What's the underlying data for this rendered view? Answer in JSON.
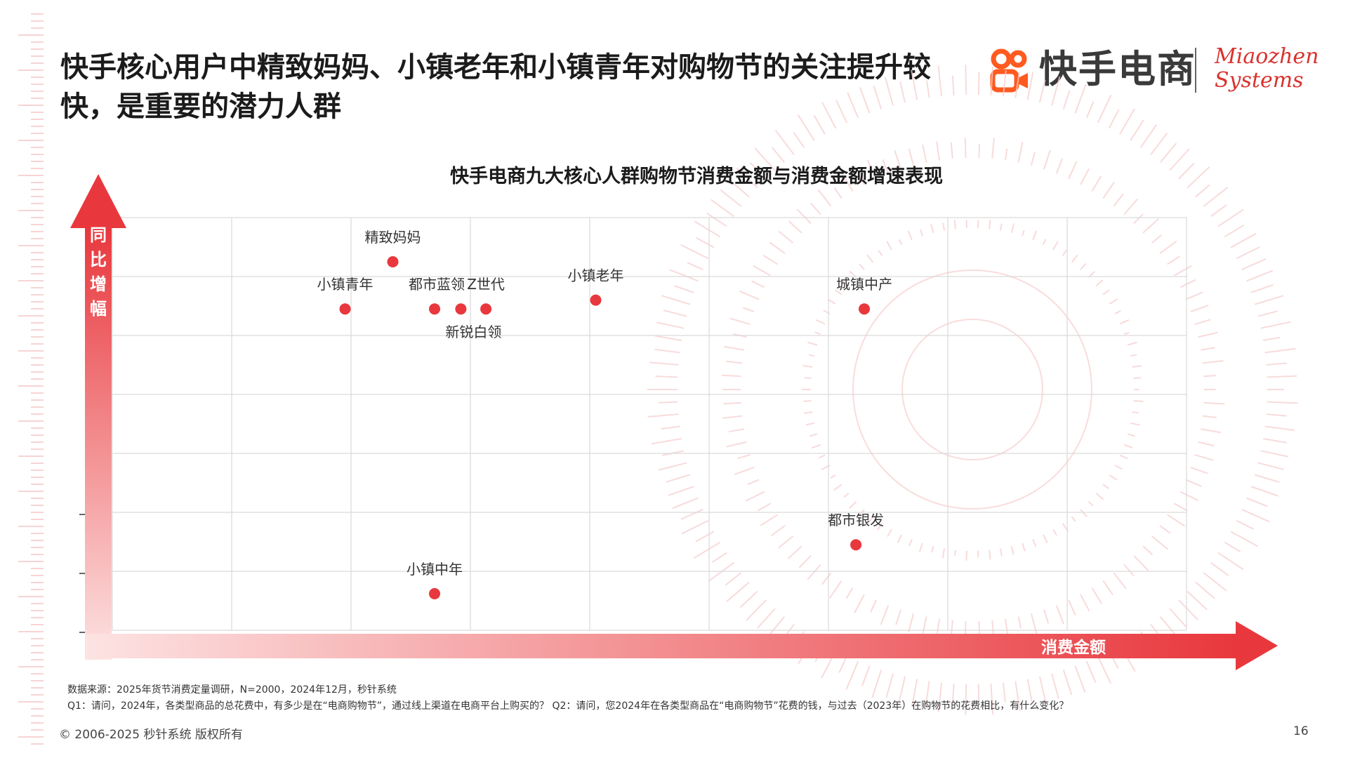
{
  "header": {
    "title": "快手核心用户中精致妈妈、小镇老年和小镇青年对购物节的关注提升较快，是重要的潜力人群",
    "logo_text": "快手电商",
    "partner_logo_line1": "Miaozhen",
    "partner_logo_line2": "Systems"
  },
  "colors": {
    "accent": "#e8383d",
    "grid": "#d9d9d9",
    "point": "#e8383d"
  },
  "chart_data": {
    "type": "scatter",
    "title": "快手电商九大核心人群购物节消费金额与消费金额增速表现",
    "xlabel": "消费金额",
    "ylabel": "同比增幅",
    "xlim": [
      0,
      9
    ],
    "ylim": [
      0,
      7
    ],
    "grid": true,
    "points": [
      {
        "label": "精致妈妈",
        "x": 2.35,
        "y": 6.25
      },
      {
        "label": "小镇青年",
        "x": 1.95,
        "y": 5.45
      },
      {
        "label": "都市蓝领",
        "x": 2.7,
        "y": 5.45
      },
      {
        "label": "新锐白领",
        "x": 2.92,
        "y": 5.45
      },
      {
        "label": "Z世代",
        "x": 3.13,
        "y": 5.45
      },
      {
        "label": "小镇老年",
        "x": 4.05,
        "y": 5.6
      },
      {
        "label": "城镇中产",
        "x": 6.3,
        "y": 5.45
      },
      {
        "label": "都市银发",
        "x": 6.23,
        "y": 1.45
      },
      {
        "label": "小镇中年",
        "x": 2.7,
        "y": 0.62
      }
    ]
  },
  "footer": {
    "source": "数据来源：2025年货节消费定量调研，N=2000，2024年12月，秒针系统",
    "questions": "Q1：请问，2024年，各类型商品的总花费中，有多少是在“电商购物节”，通过线上渠道在电商平台上购买的？ Q2：请问，您2024年在各类型商品在“电商购物节”花费的钱，与过去（2023年）在购物节的花费相比，有什么变化？",
    "copyright": "© 2006-2025 秒针系统 版权所有",
    "page_number": "16"
  }
}
